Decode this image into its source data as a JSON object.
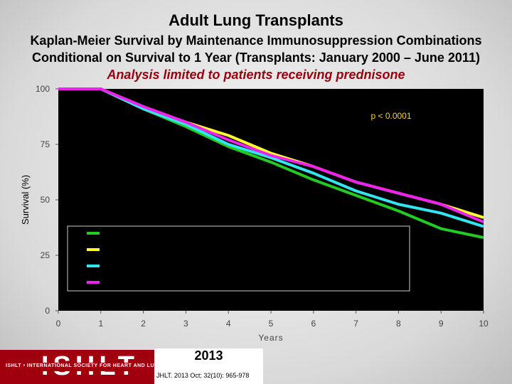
{
  "header": {
    "title": "Adult Lung Transplants",
    "subtitle_line1": "Kaplan-Meier Survival by Maintenance Immunosuppression Combinations",
    "subtitle_line2": "Conditional on Survival to 1 Year (Transplants: January 2000 – June 2011)",
    "subtitle_line3": "Analysis limited to patients receiving prednisone"
  },
  "chart_data": {
    "type": "line",
    "title": "",
    "xlabel": "Years",
    "ylabel": "Survival (%)",
    "xlim": [
      0,
      10
    ],
    "ylim": [
      0,
      100
    ],
    "x_ticks": [
      "0",
      "1",
      "2",
      "3",
      "4",
      "5",
      "6",
      "7",
      "8",
      "9",
      "10"
    ],
    "y_ticks": [
      "0",
      "25",
      "50",
      "75",
      "100"
    ],
    "annotation": "p < 0.0001",
    "grid": false,
    "legend_position": "lower-center",
    "background": "#000000",
    "series": [
      {
        "color": "#22cc22",
        "x": [
          0,
          1,
          2,
          3,
          4,
          5,
          6,
          7,
          8,
          9,
          10
        ],
        "y": [
          100,
          100,
          91,
          83,
          74,
          67,
          59,
          52,
          45,
          37,
          33
        ]
      },
      {
        "color": "#ffff33",
        "x": [
          0,
          1,
          2,
          3,
          4,
          5,
          6,
          7,
          8,
          9,
          10
        ],
        "y": [
          100,
          100,
          92,
          85,
          79,
          71,
          65,
          58,
          53,
          48,
          42
        ]
      },
      {
        "color": "#33e5f0",
        "x": [
          0,
          1,
          2,
          3,
          4,
          5,
          6,
          7,
          8,
          9,
          10
        ],
        "y": [
          100,
          100,
          91,
          84,
          75,
          69,
          62,
          54,
          48,
          44,
          38
        ]
      },
      {
        "color": "#ee22ee",
        "x": [
          0,
          1,
          2,
          3,
          4,
          5,
          6,
          7,
          8,
          9,
          10
        ],
        "y": [
          100,
          100,
          92,
          85,
          77,
          70,
          65,
          58,
          53,
          48,
          40
        ]
      }
    ]
  },
  "footer": {
    "logo_text": "ISHLT",
    "logo_band_text": "ISHLT • INTERNATIONAL SOCIETY FOR HEART AND LUNG TRANSPLANTATION",
    "year": "2013",
    "citation": "JHLT. 2013 Oct; 32(10): 965-978"
  }
}
